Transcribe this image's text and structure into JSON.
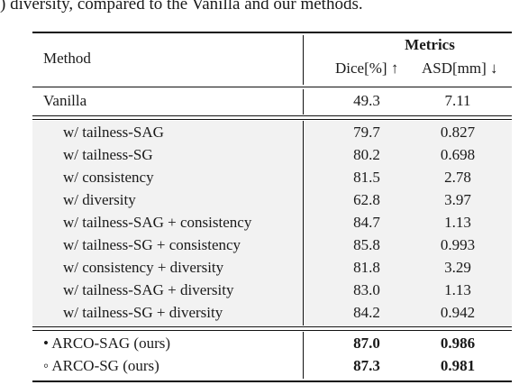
{
  "caption": ") diversity, compared to the Vanilla and our methods.",
  "header": {
    "method": "Method",
    "metrics": "Metrics",
    "dice": "Dice[%] ↑",
    "asd": "ASD[mm] ↓"
  },
  "vanilla": {
    "method": "Vanilla",
    "dice": "49.3",
    "asd": "7.11"
  },
  "ablations": [
    {
      "method": "w/ tailness-SAG",
      "dice": "79.7",
      "asd": "0.827"
    },
    {
      "method": "w/ tailness-SG",
      "dice": "80.2",
      "asd": "0.698"
    },
    {
      "method": "w/ consistency",
      "dice": "81.5",
      "asd": "2.78"
    },
    {
      "method": "w/ diversity",
      "dice": "62.8",
      "asd": "3.97"
    },
    {
      "method": "w/ tailness-SAG + consistency",
      "dice": "84.7",
      "asd": "1.13"
    },
    {
      "method": "w/ tailness-SG + consistency",
      "dice": "85.8",
      "asd": "0.993"
    },
    {
      "method": "w/ consistency + diversity",
      "dice": "81.8",
      "asd": "3.29"
    },
    {
      "method": "w/ tailness-SAG + diversity",
      "dice": "83.0",
      "asd": "1.13"
    },
    {
      "method": "w/ tailness-SG + diversity",
      "dice": "84.2",
      "asd": "0.942"
    }
  ],
  "ours": [
    {
      "method": "• ARCO-SAG (ours)",
      "dice": "87.0",
      "asd": "0.986"
    },
    {
      "method": "◦ ARCO-SG (ours)",
      "dice": "87.3",
      "asd": "0.981"
    }
  ]
}
